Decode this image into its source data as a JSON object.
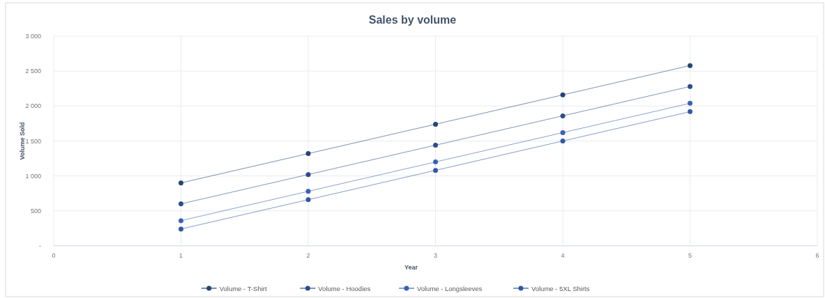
{
  "chart_data": {
    "type": "line",
    "title": "Sales by volume",
    "xlabel": "Year",
    "ylabel": "Volume Sold",
    "x": [
      1,
      2,
      3,
      4,
      5
    ],
    "series": [
      {
        "name": "Volume - T-Shirt",
        "color": "#264478",
        "values": [
          900,
          1320,
          1740,
          2160,
          2580
        ]
      },
      {
        "name": "Volume - Hoodies",
        "color": "#2c4d8c",
        "values": [
          600,
          1020,
          1440,
          1860,
          2280
        ]
      },
      {
        "name": "Volume - Longsleeves",
        "color": "#3862b5",
        "values": [
          360,
          780,
          1200,
          1620,
          2040
        ]
      },
      {
        "name": "Volume - 5XL Shirts",
        "color": "#3058a6",
        "values": [
          240,
          660,
          1080,
          1500,
          1920
        ]
      }
    ],
    "xlim": [
      0,
      6
    ],
    "xticks": [
      0,
      1,
      2,
      3,
      4,
      5,
      6
    ],
    "ylim": [
      0,
      3000
    ],
    "yticks": [
      {
        "value": 0,
        "label": "-"
      },
      500,
      {
        "value": 1000,
        "label": "1 000"
      },
      {
        "value": 1500,
        "label": "1 500"
      },
      {
        "value": 2000,
        "label": "2 000"
      },
      {
        "value": 2500,
        "label": "2 500"
      },
      {
        "value": 3000,
        "label": "3 000"
      }
    ],
    "grid": true,
    "legend": "bottom",
    "marker": "circle",
    "line_style": "solid"
  }
}
